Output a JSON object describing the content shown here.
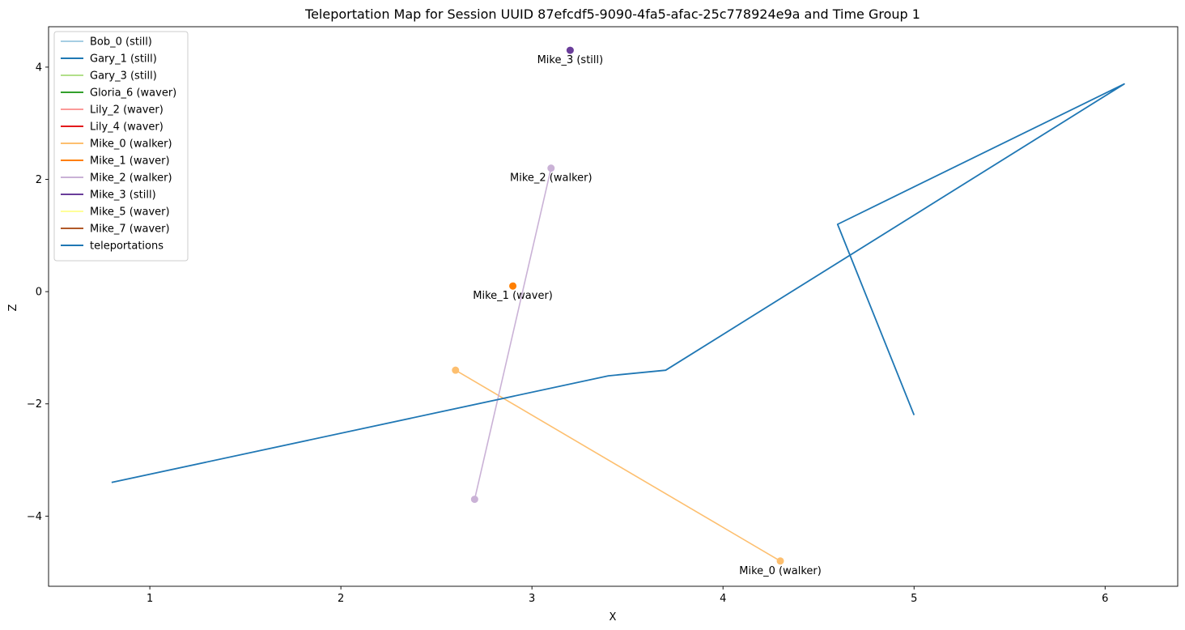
{
  "chart_data": {
    "type": "line",
    "title": "Teleportation Map for Session UUID 87efcdf5-9090-4fa5-afac-25c778924e9a and Time Group 1",
    "xlabel": "X",
    "ylabel": "Z",
    "xlim": [
      0.47,
      6.38
    ],
    "ylim": [
      -5.25,
      4.72
    ],
    "xticks": [
      1,
      2,
      3,
      4,
      5,
      6
    ],
    "yticks": [
      -4,
      -2,
      0,
      2,
      4
    ],
    "grid": false,
    "legend_position": "top-left",
    "legend": [
      {
        "name": "Bob_0 (still)",
        "color": "#a6cee3"
      },
      {
        "name": "Gary_1 (still)",
        "color": "#1f78b4"
      },
      {
        "name": "Gary_3 (still)",
        "color": "#b2df8a"
      },
      {
        "name": "Gloria_6 (waver)",
        "color": "#33a02c"
      },
      {
        "name": "Lily_2 (waver)",
        "color": "#fb9a99"
      },
      {
        "name": "Lily_4 (waver)",
        "color": "#e31a1c"
      },
      {
        "name": "Mike_0 (walker)",
        "color": "#fdbf6f"
      },
      {
        "name": "Mike_1 (waver)",
        "color": "#ff7f00"
      },
      {
        "name": "Mike_2 (walker)",
        "color": "#cab2d6"
      },
      {
        "name": "Mike_3 (still)",
        "color": "#6a3d9a"
      },
      {
        "name": "Mike_5 (waver)",
        "color": "#ffff99"
      },
      {
        "name": "Mike_7 (waver)",
        "color": "#b15928"
      },
      {
        "name": "teleportations",
        "color": "#1f77b4"
      }
    ],
    "series": [
      {
        "name": "Mike_0 (walker)",
        "color": "#fdbf6f",
        "points": [
          [
            2.6,
            -1.4
          ],
          [
            4.3,
            -4.8
          ]
        ],
        "markers": true,
        "annotation": {
          "text": "Mike_0 (walker)",
          "x": 4.3,
          "y": -4.8
        }
      },
      {
        "name": "Mike_1 (waver)",
        "color": "#ff7f00",
        "points": [
          [
            2.9,
            0.1
          ]
        ],
        "markers": true,
        "annotation": {
          "text": "Mike_1 (waver)",
          "x": 2.9,
          "y": 0.1
        }
      },
      {
        "name": "Mike_2 (walker)",
        "color": "#cab2d6",
        "points": [
          [
            2.7,
            -3.7
          ],
          [
            3.1,
            2.2
          ]
        ],
        "markers": true,
        "annotation": {
          "text": "Mike_2 (walker)",
          "x": 3.1,
          "y": 2.2
        }
      },
      {
        "name": "Mike_3 (still)",
        "color": "#6a3d9a",
        "points": [
          [
            3.2,
            4.3
          ]
        ],
        "markers": true,
        "annotation": {
          "text": "Mike_3 (still)",
          "x": 3.2,
          "y": 4.3
        }
      },
      {
        "name": "teleportations",
        "color": "#1f77b4",
        "points": [
          [
            0.8,
            -3.4
          ],
          [
            3.4,
            -1.5
          ],
          [
            3.7,
            -1.4
          ],
          [
            6.1,
            3.7
          ],
          [
            4.6,
            1.2
          ],
          [
            5.0,
            -2.2
          ]
        ],
        "markers": false
      }
    ]
  }
}
